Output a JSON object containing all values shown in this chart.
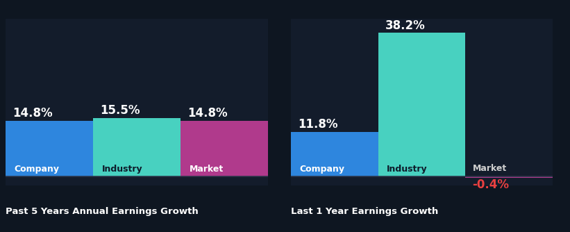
{
  "background_color": "#0e1621",
  "chart_bg": "#131c2b",
  "groups": [
    {
      "title": "Past 5 Years Annual Earnings Growth",
      "bars": [
        {
          "label": "Company",
          "value": 14.8,
          "color": "#2e86de",
          "label_color": "#ffffff"
        },
        {
          "label": "Industry",
          "value": 15.5,
          "color": "#48d1c0",
          "label_color": "#0d1b2a"
        },
        {
          "label": "Market",
          "value": 14.8,
          "color": "#b03a8c",
          "label_color": "#ffffff"
        }
      ]
    },
    {
      "title": "Last 1 Year Earnings Growth",
      "bars": [
        {
          "label": "Company",
          "value": 11.8,
          "color": "#2e86de",
          "label_color": "#ffffff"
        },
        {
          "label": "Industry",
          "value": 38.2,
          "color": "#48d1c0",
          "label_color": "#0d1b2a"
        },
        {
          "label": "Market",
          "value": -0.4,
          "color": "#b03a8c",
          "label_color": "#ffffff"
        }
      ]
    }
  ],
  "value_color_positive": "#ffffff",
  "value_color_negative": "#e84040",
  "market_label_color": "#d0d0d0",
  "title_color": "#ffffff",
  "title_fontsize": 9.5,
  "value_fontsize": 12,
  "bar_label_fontsize": 9,
  "axis_line_color": "#2a3548",
  "ylim_max": 42,
  "ylim_min": -2.5
}
